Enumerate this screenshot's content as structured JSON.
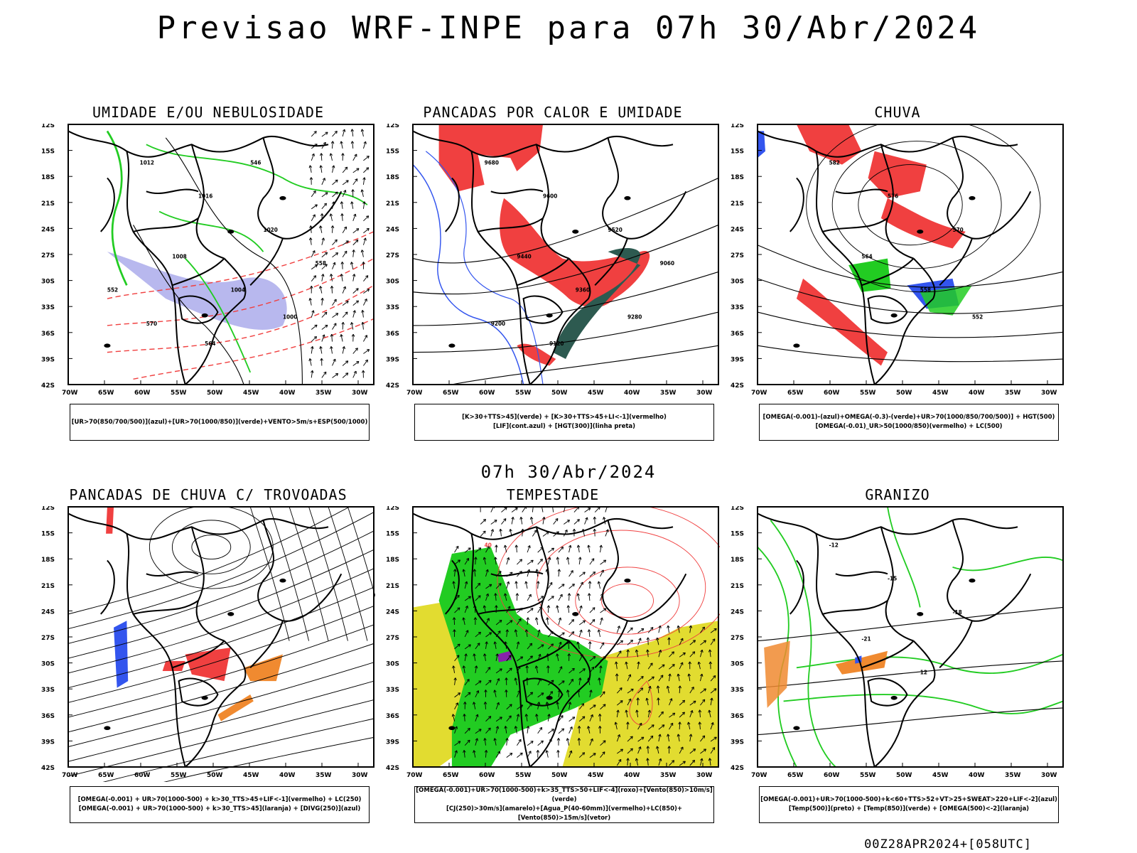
{
  "title": "Previsao WRF-INPE  para 07h 30/Abr/2024",
  "mid_title": "07h 30/Abr/2024",
  "footer": "00Z28APR2024+[058UTC]",
  "lat_ticks": [
    "12S",
    "15S",
    "18S",
    "21S",
    "24S",
    "27S",
    "30S",
    "33S",
    "36S",
    "39S",
    "42S"
  ],
  "lon_ticks": [
    "70W",
    "65W",
    "60W",
    "55W",
    "50W",
    "45W",
    "40W",
    "35W",
    "30W"
  ],
  "panels": [
    {
      "title": "UMIDADE E/OU NEBULOSIDADE",
      "legend": [
        "[UR>70(850/700/500)](azul)+[UR>70(1000/850)](verde)+VENTO>5m/s+ESP(500/1000)"
      ]
    },
    {
      "title": "PANCADAS POR CALOR E UMIDADE",
      "legend": [
        "[K>30+TTS>45](verde) + [K>30+TTS>45+LI<-1](vermelho)",
        "[LIF](cont.azul) + [HGT(300)](linha preta)"
      ]
    },
    {
      "title": "CHUVA",
      "legend": [
        "[OMEGA(-0.001)-(azul)+OMEGA(-0.3)-(verde)+UR>70(1000/850/700/500)] + HGT(500)",
        "[OMEGA(-0.01)_UR>50(1000/850)(vermelho) + LC(500)"
      ]
    },
    {
      "title": "PANCADAS DE CHUVA C/ TROVOADAS",
      "legend": [
        "[OMEGA(-0.001) + UR>70(1000-500) + k>30_TTS>45+LIF<-1](vermelho) + LC(250)",
        "[OMEGA(-0.001) + UR>70(1000-500) + k>30_TTS>45](laranja) + [DIVG(250)](azul)"
      ]
    },
    {
      "title": "TEMPESTADE",
      "legend": [
        "[OMEGA(-0.001)+UR>70(1000-500)+k>35_TTS>50+LIF<-4](roxo)+[Vento(850)>10m/s](verde)",
        "[CJ(250)>30m/s](amarelo)+[Agua_P(40-60mm)](vermelho)+LC(850)+[Vento(850)>15m/s](vetor)"
      ]
    },
    {
      "title": "GRANIZO",
      "legend": [
        "[OMEGA(-0.001)+UR>70(1000-500)+k<60+TTS>52+VT>25+SWEAT>220+LIF<-2](azul)",
        "[Temp(500)](preto) + [Temp(850)](verde) + [OMEGA(500)<-2](laranja)"
      ]
    }
  ],
  "contour_labels": {
    "p1": [
      "1012",
      "1016",
      "1020",
      "1008",
      "1004",
      "1000",
      "570",
      "564",
      "558",
      "552",
      "546"
    ],
    "p2": [
      "9680",
      "9600",
      "9520",
      "9440",
      "9360",
      "9280",
      "9200",
      "9120",
      "9060"
    ],
    "p3": [
      "582",
      "576",
      "570",
      "564",
      "558",
      "552"
    ],
    "p5": [
      "40"
    ],
    "p6": [
      "-12",
      "-15",
      "-18",
      "-21",
      "12"
    ]
  },
  "colors": {
    "red": "#f04040",
    "green": "#22cc22",
    "blue": "#3355ee",
    "lavender": "#b8b8ee",
    "yellow": "#e2dc30",
    "orange": "#f08a30",
    "dark": "#2d5a50",
    "purple": "#8822aa"
  }
}
